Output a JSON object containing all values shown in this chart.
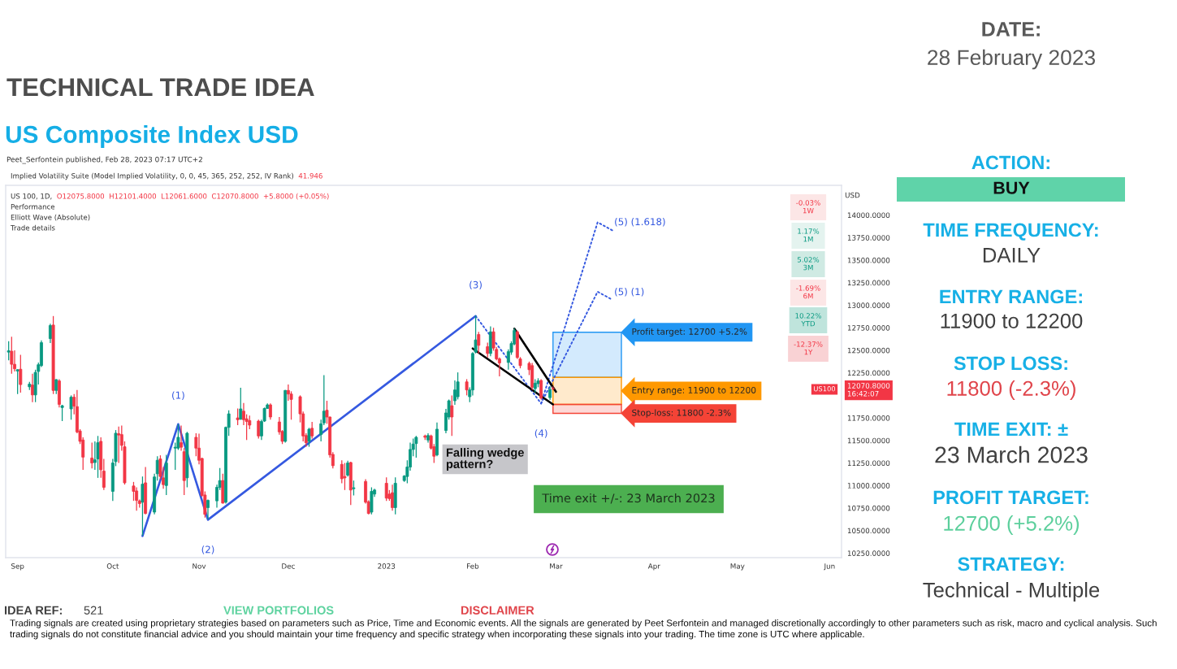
{
  "chart_data": {
    "type": "candlestick",
    "title": "TECHNICAL TRADE IDEA",
    "subtitle": "US Composite Index USD",
    "ylabel": "USD",
    "x": [
      "2022-08-29",
      "2022-08-30",
      "2022-08-31",
      "2022-09-01",
      "2022-09-02",
      "2022-09-05",
      "2022-09-06",
      "2022-09-07",
      "2022-09-08",
      "2022-09-09",
      "2022-09-12",
      "2022-09-13",
      "2022-09-14",
      "2022-09-15",
      "2022-09-16",
      "2022-09-19",
      "2022-09-20",
      "2022-09-21",
      "2022-09-22",
      "2022-09-23",
      "2022-09-26",
      "2022-09-27",
      "2022-09-28",
      "2022-09-29",
      "2022-09-30",
      "2022-10-03",
      "2022-10-04",
      "2022-10-05",
      "2022-10-06",
      "2022-10-07",
      "2022-10-10",
      "2022-10-11",
      "2022-10-12",
      "2022-10-13",
      "2022-10-14",
      "2022-10-17",
      "2022-10-18",
      "2022-10-19",
      "2022-10-20",
      "2022-10-21",
      "2022-10-24",
      "2022-10-25",
      "2022-10-26",
      "2022-10-27",
      "2022-10-28",
      "2022-10-31",
      "2022-11-01",
      "2022-11-02",
      "2022-11-03",
      "2022-11-04",
      "2022-11-07",
      "2022-11-08",
      "2022-11-09",
      "2022-11-10",
      "2022-11-11",
      "2022-11-14",
      "2022-11-15",
      "2022-11-16",
      "2022-11-17",
      "2022-11-18",
      "2022-11-21",
      "2022-11-22",
      "2022-11-23",
      "2022-11-24",
      "2022-11-25",
      "2022-11-28",
      "2022-11-29",
      "2022-11-30",
      "2022-12-01",
      "2022-12-02",
      "2022-12-05",
      "2022-12-06",
      "2022-12-07",
      "2022-12-08",
      "2022-12-09",
      "2022-12-12",
      "2022-12-13",
      "2022-12-14",
      "2022-12-15",
      "2022-12-16",
      "2022-12-19",
      "2022-12-20",
      "2022-12-21",
      "2022-12-22",
      "2022-12-23",
      "2022-12-27",
      "2022-12-28",
      "2022-12-29",
      "2022-12-30",
      "2023-01-03",
      "2023-01-04",
      "2023-01-05",
      "2023-01-06",
      "2023-01-09",
      "2023-01-10",
      "2023-01-11",
      "2023-01-12",
      "2023-01-13",
      "2023-01-16",
      "2023-01-17",
      "2023-01-18",
      "2023-01-19",
      "2023-01-20",
      "2023-01-23",
      "2023-01-24",
      "2023-01-25",
      "2023-01-26",
      "2023-01-27",
      "2023-01-30",
      "2023-01-31",
      "2023-02-01",
      "2023-02-02",
      "2023-02-03",
      "2023-02-06",
      "2023-02-07",
      "2023-02-08",
      "2023-02-09",
      "2023-02-10",
      "2023-02-13",
      "2023-02-14",
      "2023-02-15",
      "2023-02-16",
      "2023-02-17",
      "2023-02-20",
      "2023-02-21",
      "2023-02-22",
      "2023-02-23",
      "2023-02-24",
      "2023-02-27",
      "2023-02-28"
    ],
    "ohlc": [
      [
        12480,
        12600,
        12390,
        12495
      ],
      [
        12490,
        12650,
        12240,
        12345
      ],
      [
        12345,
        12500,
        12265,
        12295
      ],
      [
        12270,
        12290,
        12015,
        12285
      ],
      [
        12290,
        12450,
        12030,
        12120
      ],
      [
        12095,
        12150,
        12060,
        12125
      ],
      [
        12115,
        12240,
        11925,
        12005
      ],
      [
        12005,
        12285,
        11925,
        12255
      ],
      [
        12265,
        12365,
        12120,
        12340
      ],
      [
        12330,
        12610,
        12315,
        12585
      ],
      [
        12630,
        12795,
        12580,
        12775
      ],
      [
        12780,
        12880,
        12015,
        12055
      ],
      [
        12055,
        12180,
        12015,
        12175
      ],
      [
        12160,
        12180,
        11865,
        11900
      ],
      [
        11865,
        11895,
        11715,
        11885
      ],
      [
        11850,
        12000,
        11730,
        11980
      ],
      [
        11980,
        12015,
        11790,
        11880
      ],
      [
        11875,
        12060,
        11580,
        11595
      ],
      [
        11605,
        11625,
        11460,
        11490
      ],
      [
        11505,
        11535,
        11175,
        11315
      ],
      [
        11305,
        11475,
        11190,
        11250
      ],
      [
        11255,
        11490,
        11175,
        11285
      ],
      [
        11295,
        11550,
        11085,
        11475
      ],
      [
        11490,
        11535,
        11085,
        11175
      ],
      [
        11160,
        11295,
        10950,
        10980
      ],
      [
        10935,
        11295,
        10830,
        11250
      ],
      [
        11265,
        11615,
        11215,
        11580
      ],
      [
        11575,
        11655,
        11250,
        11560
      ],
      [
        11565,
        11665,
        11385,
        11445
      ],
      [
        11430,
        11490,
        11010,
        11030
      ],
      [
        10995,
        11040,
        10830,
        10935
      ],
      [
        10940,
        10980,
        10720,
        10835
      ],
      [
        10830,
        10845,
        10755,
        10800
      ],
      [
        10815,
        11100,
        10445,
        11015
      ],
      [
        11030,
        11205,
        10680,
        10690
      ],
      [
        10705,
        11130,
        10680,
        11095
      ],
      [
        11130,
        11325,
        11055,
        11280
      ],
      [
        11295,
        11335,
        11070,
        11100
      ],
      [
        11085,
        11205,
        10965,
        11010
      ],
      [
        11000,
        11340,
        10895,
        11250
      ],
      [
        11415,
        11475,
        11175,
        11425
      ],
      [
        11415,
        11680,
        11395,
        11535
      ],
      [
        11475,
        11665,
        11385,
        11425
      ],
      [
        11375,
        11415,
        10895,
        11055
      ],
      [
        11085,
        11595,
        10980,
        11580
      ],
      [
        11535,
        11580,
        11325,
        11415
      ],
      [
        11415,
        11575,
        11235,
        11280
      ],
      [
        11300,
        11310,
        10875,
        10890
      ],
      [
        10895,
        10935,
        10645,
        10680
      ],
      [
        10755,
        10845,
        10625,
        10835
      ],
      [
        10830,
        11010,
        10755,
        10980
      ],
      [
        10980,
        11195,
        10950,
        11055
      ],
      [
        11055,
        11130,
        10800,
        10805
      ],
      [
        10815,
        11655,
        10800,
        11645
      ],
      [
        11645,
        11835,
        11550,
        11795
      ],
      [
        11750,
        11855,
        11670,
        11730
      ],
      [
        11735,
        12085,
        11730,
        11850
      ],
      [
        11825,
        11915,
        11670,
        11730
      ],
      [
        11740,
        11790,
        11505,
        11710
      ],
      [
        11720,
        11775,
        11625,
        11670
      ],
      [
        11715,
        11730,
        11520,
        11550
      ],
      [
        11550,
        11730,
        11505,
        11710
      ],
      [
        11715,
        11865,
        11705,
        11855
      ],
      [
        11855,
        11910,
        11850,
        11895
      ],
      [
        11895,
        11910,
        11730,
        11760
      ],
      [
        11705,
        11760,
        11565,
        11595
      ],
      [
        11600,
        11615,
        11460,
        11490
      ],
      [
        11490,
        12060,
        11475,
        12055
      ],
      [
        12055,
        12120,
        11940,
        12015
      ],
      [
        12015,
        12045,
        11730,
        11955
      ],
      [
        11985,
        12000,
        11700,
        11795
      ],
      [
        11795,
        11820,
        11490,
        11550
      ],
      [
        11555,
        11580,
        11430,
        11475
      ],
      [
        11490,
        11640,
        11430,
        11625
      ],
      [
        11635,
        11705,
        11520,
        11550
      ],
      [
        11565,
        11730,
        11490,
        11685
      ],
      [
        11695,
        12225,
        11670,
        11825
      ],
      [
        11835,
        11940,
        11685,
        11760
      ],
      [
        11760,
        11765,
        11310,
        11340
      ],
      [
        11345,
        11370,
        11190,
        11220
      ],
      [
        11235,
        11280,
        11025,
        11075
      ],
      [
        11100,
        11250,
        10950,
        11085
      ],
      [
        11115,
        11275,
        11100,
        11250
      ],
      [
        11255,
        11265,
        10785,
        10950
      ],
      [
        10965,
        11055,
        10890,
        10975
      ],
      [
        11045,
        11070,
        10800,
        10815
      ],
      [
        10820,
        10835,
        10680,
        10690
      ],
      [
        10705,
        10980,
        10680,
        10935
      ],
      [
        10905,
        10965,
        10875,
        10950
      ],
      [
        11025,
        11090,
        10830,
        10860
      ],
      [
        10905,
        10950,
        10830,
        10855
      ],
      [
        10920,
        11010,
        10720,
        10755
      ],
      [
        10755,
        11090,
        10680,
        11025
      ],
      [
        11055,
        11115,
        11040,
        11105
      ],
      [
        11100,
        11280,
        11025,
        11205
      ],
      [
        11205,
        11475,
        11165,
        11400
      ],
      [
        11400,
        11520,
        11325,
        11460
      ],
      [
        11465,
        11550,
        11310,
        11535
      ],
      [
        11550,
        11565,
        11505,
        11535
      ],
      [
        11505,
        11580,
        11475,
        11555
      ],
      [
        11550,
        11565,
        11400,
        11415
      ],
      [
        11430,
        11460,
        11250,
        11325
      ],
      [
        11340,
        11700,
        11325,
        11625
      ],
      [
        11610,
        11850,
        11580,
        11805
      ],
      [
        11760,
        11955,
        11730,
        11940
      ],
      [
        11885,
        12000,
        11550,
        11760
      ],
      [
        11940,
        12165,
        11895,
        12060
      ],
      [
        11985,
        12255,
        11955,
        12150
      ],
      [
        12150,
        12180,
        12000,
        12060
      ],
      [
        11985,
        12090,
        11925,
        12060
      ],
      [
        12060,
        12480,
        12000,
        12465
      ],
      [
        12480,
        12885,
        12465,
        12615
      ],
      [
        12675,
        12705,
        12465,
        12555
      ],
      [
        12540,
        12585,
        12420,
        12465
      ],
      [
        12465,
        12765,
        12435,
        12705
      ],
      [
        12705,
        12750,
        12495,
        12525
      ],
      [
        12510,
        12535,
        12390,
        12405
      ],
      [
        12405,
        12420,
        12210,
        12360
      ],
      [
        12365,
        12510,
        12285,
        12485
      ],
      [
        12480,
        12600,
        12450,
        12575
      ],
      [
        12570,
        12745,
        12555,
        12720
      ],
      [
        12705,
        12720,
        12405,
        12420
      ],
      [
        12405,
        12425,
        12300,
        12330
      ],
      [
        12355,
        12375,
        12225,
        12285
      ],
      [
        12330,
        12360,
        12060,
        12090
      ],
      [
        12075,
        12180,
        12030,
        12135
      ],
      [
        12130,
        12190,
        12090,
        12160
      ],
      [
        12165,
        12180,
        11955,
        11970
      ],
      [
        11975,
        12100,
        11950,
        12065
      ],
      [
        12075.8,
        12101.4,
        12061.6,
        12070.8
      ]
    ],
    "colors": [
      "#089981",
      "#f23645",
      "#f23645",
      "#089981",
      "#f23645",
      "#089981",
      "#f23645",
      "#089981",
      "#089981",
      "#089981",
      "#089981",
      "#f23645",
      "#089981",
      "#f23645",
      "#089981",
      "#089981",
      "#f23645",
      "#f23645",
      "#f23645",
      "#f23645",
      "#f23645",
      "#089981",
      "#089981",
      "#f23645",
      "#f23645",
      "#089981",
      "#089981",
      "#f23645",
      "#f23645",
      "#f23645",
      "#f23645",
      "#f23645",
      "#f23645",
      "#089981",
      "#f23645",
      "#089981",
      "#089981",
      "#f23645",
      "#f23645",
      "#089981",
      "#089981",
      "#089981",
      "#f23645",
      "#f23645",
      "#089981",
      "#f23645",
      "#f23645",
      "#f23645",
      "#f23645",
      "#089981",
      "#089981",
      "#089981",
      "#f23645",
      "#089981",
      "#089981",
      "#f23645",
      "#089981",
      "#f23645",
      "#f23645",
      "#f23645",
      "#f23645",
      "#089981",
      "#089981",
      "#089981",
      "#f23645",
      "#f23645",
      "#f23645",
      "#089981",
      "#f23645",
      "#f23645",
      "#f23645",
      "#f23645",
      "#f23645",
      "#089981",
      "#f23645",
      "#089981",
      "#089981",
      "#f23645",
      "#f23645",
      "#f23645",
      "#f23645",
      "#f23645",
      "#089981",
      "#f23645",
      "#089981",
      "#f23645",
      "#f23645",
      "#089981",
      "#089981",
      "#f23645",
      "#f23645",
      "#f23645",
      "#089981",
      "#089981",
      "#089981",
      "#089981",
      "#089981",
      "#089981",
      "#f23645",
      "#089981",
      "#f23645",
      "#f23645",
      "#089981",
      "#089981",
      "#089981",
      "#f23645",
      "#089981",
      "#089981",
      "#f23645",
      "#089981",
      "#089981",
      "#089981",
      "#f23645",
      "#f23645",
      "#089981",
      "#f23645",
      "#f23645",
      "#f23645",
      "#089981",
      "#089981",
      "#089981",
      "#f23645",
      "#f23645",
      "#f23645",
      "#f23645",
      "#089981",
      "#089981",
      "#f23645",
      "#089981",
      "#f23645"
    ],
    "series": [
      {
        "type": "line",
        "x": [
          "2022-10-13",
          "2022-10-25",
          "2022-11-04",
          "2023-02-02"
        ],
        "values": [
          10440,
          11680,
          10620,
          12880
        ],
        "color": "#3559e0",
        "line_style": "solid"
      },
      {
        "type": "line",
        "x": [
          "2023-02-02",
          "2023-02-24",
          "2023-03-15",
          "2023-03-20"
        ],
        "values": [
          12880,
          11910,
          13920,
          13830
        ],
        "color": "#3559e0",
        "line_style": "dotted"
      },
      {
        "type": "line",
        "x": [
          "2023-02-24",
          "2023-03-15",
          "2023-03-20"
        ],
        "values": [
          11910,
          13150,
          13060
        ],
        "color": "#3559e0",
        "line_style": "dotted"
      },
      {
        "type": "line",
        "x": [
          "2023-02-15",
          "2023-03-01"
        ],
        "values": [
          12740,
          12040
        ],
        "color": "#000000",
        "line_style": "solid"
      },
      {
        "type": "line",
        "x": [
          "2023-02-01",
          "2023-02-28"
        ],
        "values": [
          12520,
          11900
        ],
        "color": "#000000",
        "line_style": "solid"
      }
    ],
    "xlim": [
      "2022-08-28",
      "2023-06-05"
    ],
    "xticks": [
      {
        "value": "2022-09-01",
        "label": "Sep"
      },
      {
        "value": "2022-10-03",
        "label": "Oct"
      },
      {
        "value": "2022-11-01",
        "label": "Nov"
      },
      {
        "value": "2022-12-01",
        "label": "Dec"
      },
      {
        "value": "2023-01-03",
        "label": "2023"
      },
      {
        "value": "2023-02-01",
        "label": "Feb"
      },
      {
        "value": "2023-03-01",
        "label": "Mar"
      },
      {
        "value": "2023-04-03",
        "label": "Apr"
      },
      {
        "value": "2023-05-01",
        "label": "May"
      },
      {
        "value": "2023-06-01",
        "label": "Jun"
      }
    ],
    "ylim": [
      10200,
      14330
    ],
    "yticks": [
      {
        "value": 10250,
        "label": "10250.0000"
      },
      {
        "value": 10500,
        "label": "10500.0000"
      },
      {
        "value": 10750,
        "label": "10750.0000"
      },
      {
        "value": 11000,
        "label": "11000.0000"
      },
      {
        "value": 11250,
        "label": "11250.0000"
      },
      {
        "value": 11500,
        "label": "11500.0000"
      },
      {
        "value": 11750,
        "label": "11750.0000"
      },
      {
        "value": 12070.8,
        "label": "12070.8000\n16:42:07"
      },
      {
        "value": 12250,
        "label": "12250.0000"
      },
      {
        "value": 12500,
        "label": "12500.0000"
      },
      {
        "value": 12750,
        "label": "12750.0000"
      },
      {
        "value": 13000,
        "label": "13000.0000"
      },
      {
        "value": 13250,
        "label": "13250.0000"
      },
      {
        "value": 13500,
        "label": "13500.0000"
      },
      {
        "value": 13750,
        "label": "13750.0000"
      },
      {
        "value": 14000,
        "label": "14000.0000"
      }
    ],
    "grid": false,
    "bands": [
      {
        "axis": "y",
        "from": 12200,
        "to": 12700,
        "label": "Profit target: 12700 +5.2%",
        "color": "#2196f3"
      },
      {
        "axis": "y",
        "from": 11900,
        "to": 12200,
        "label": "Entry range: 11900 to 12200",
        "color": "#ff9800"
      },
      {
        "axis": "y",
        "from": 11800,
        "to": 11900,
        "label": "Stop-loss: 11800 -2.3%",
        "color": "#f44336"
      }
    ],
    "annotations": [
      {
        "text": "(1)",
        "x": "2022-10-25",
        "y": 11680
      },
      {
        "text": "(2)",
        "x": "2022-11-04",
        "y": 10620
      },
      {
        "text": "(3)",
        "x": "2023-02-02",
        "y": 12880
      },
      {
        "text": "(4)",
        "x": "2023-02-24",
        "y": 11910
      },
      {
        "text": "(5) (1.618)",
        "x": "2023-03-20",
        "y": 13830
      },
      {
        "text": "(5) (1)",
        "x": "2023-03-20",
        "y": 13060
      },
      "Falling wedge\npattern?",
      "US100",
      "Time exit +/-: 23 March 2023",
      "Peet_Serfontein published, Feb 28, 2023 07:17 UTC+2",
      "Implied Volatility Suite (Model Implied Volatility, 0, 0, 45, 365, 252, 252, IV Rank)",
      "41.946",
      "US 100, 1D,",
      "O12075.8000  H12101.4000  L12061.6000  C12070.8000  +5.8000 (+0.05%)",
      "Performance",
      "Elliott Wave (Absolute)",
      "Trade details",
      "-0.03%\n1W",
      "1.17%\n1M",
      "5.02%\n3M",
      "-1.69%\n6M",
      "10.22%\nYTD",
      "-12.37%\n1Y",
      "DATE:",
      "28 February 2023",
      "ACTION:",
      "BUY",
      "TIME FREQUENCY:",
      "DAILY",
      "ENTRY RANGE:",
      "11900 to 12200",
      "STOP LOSS:",
      "11800 (-2.3%)",
      "TIME EXIT: ±",
      "23 March 2023",
      "PROFIT TARGET:",
      "12700 (+5.2%)",
      "STRATEGY:",
      "Technical - Multiple",
      "IDEA REF:",
      "521",
      "VIEW PORTFOLIOS",
      "DISCLAIMER",
      "Trading signals are created using proprietary strategies based on parameters such as Price, Time and Economic events. All the signals are generated by Peet Serfontein and managed discretionally accordingly to other parameters such as risk, macro and cyclical analysis. Such trading signals do not constitute financial advice and you should maintain your time frequency and specific strategy when incorporating these signals into your trading. The time zone is UTC where applicable."
    ]
  }
}
